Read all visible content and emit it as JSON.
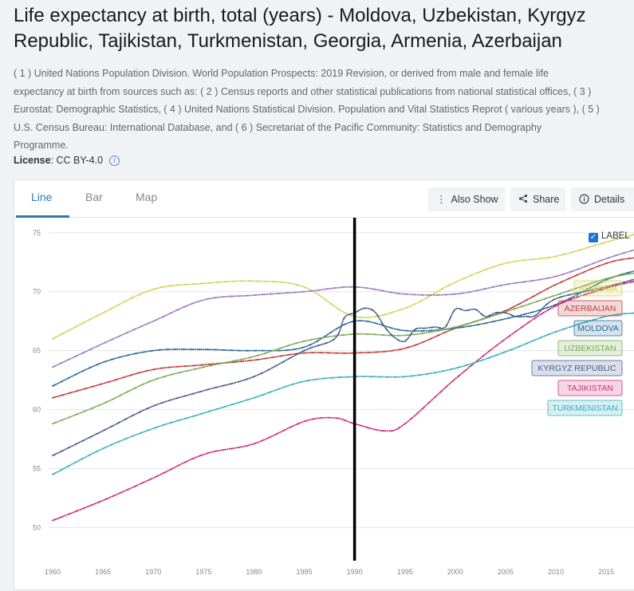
{
  "header": {
    "title_line1": "Life expectancy at birth, total (years) - Moldova, Uzbekistan, Kyrgyz",
    "title_line2": "Republic, Tajikistan, Turkmenistan, Georgia, Armenia, Azerbaijan",
    "source_lines": [
      "( 1 ) United Nations Population Division. World Population Prospects: 2019 Revision, or derived from male and female life",
      "expectancy at birth from sources such as: ( 2 ) Census reports and other statistical publications from national statistical offices, ( 3 )",
      "Eurostat: Demographic Statistics, ( 4 ) United Nations Statistical Division. Population and Vital Statistics Reprot ( various years ), ( 5 )",
      "U.S. Census Bureau: International Database, and ( 6 ) Secretariat of the Pacific Community: Statistics and Demography",
      "Programme."
    ],
    "license_label": "License",
    "license_value": ": CC BY-4.0"
  },
  "tabs": {
    "line": "Line",
    "bar": "Bar",
    "map": "Map"
  },
  "buttons": {
    "also_show": "Also Show",
    "share": "Share",
    "details": "Details"
  },
  "legend": {
    "label_toggle": "LABEL"
  },
  "colors": {
    "armenia": "#d4d45a",
    "georgia": "#9b7dc0",
    "moldova": "#2e6d9a",
    "uzbekistan": "#7aac54",
    "azerbaijan": "#c04040",
    "kyrgyz": "#4a6090",
    "tajikistan": "#d0307a",
    "turkmenistan": "#3cb0c0"
  },
  "chart_data": {
    "type": "line",
    "title": "Life expectancy at birth, total (years)",
    "xlabel": "",
    "ylabel": "",
    "xlim": [
      1960,
      2018
    ],
    "ylim": [
      48,
      76
    ],
    "x_ticks": [
      1960,
      1965,
      1970,
      1975,
      1980,
      1985,
      1990,
      1995,
      2000,
      2005,
      2010,
      2015
    ],
    "y_ticks": [
      50,
      55,
      60,
      65,
      70,
      75
    ],
    "marker_year": 1990,
    "series": [
      {
        "name": "ARMENIA",
        "color_key": "armenia",
        "label_visible": true,
        "x": [
          1960,
          1965,
          1970,
          1975,
          1980,
          1985,
          1990,
          1995,
          2000,
          2005,
          2010,
          2015,
          2018
        ],
        "y": [
          66.0,
          68.2,
          70.2,
          70.7,
          70.9,
          70.4,
          67.9,
          68.6,
          70.8,
          72.4,
          73.0,
          74.2,
          74.9
        ]
      },
      {
        "name": "GEORGIA",
        "color_key": "georgia",
        "label_visible": false,
        "x": [
          1960,
          1965,
          1970,
          1975,
          1980,
          1985,
          1990,
          1995,
          2000,
          2005,
          2010,
          2015,
          2018
        ],
        "y": [
          63.6,
          65.6,
          67.5,
          69.3,
          69.7,
          70.0,
          70.4,
          69.8,
          69.8,
          70.6,
          71.3,
          72.8,
          73.6
        ]
      },
      {
        "name": "AZERBAIJAN",
        "color_key": "azerbaijan",
        "label_visible": true,
        "x": [
          1960,
          1965,
          1970,
          1975,
          1980,
          1985,
          1990,
          1995,
          2000,
          2005,
          2010,
          2015,
          2018
        ],
        "y": [
          61.0,
          62.2,
          63.4,
          63.8,
          64.2,
          64.8,
          64.8,
          65.2,
          66.9,
          68.4,
          70.6,
          72.4,
          72.9
        ]
      },
      {
        "name": "MOLDOVA",
        "color_key": "moldova",
        "label_visible": true,
        "x": [
          1960,
          1965,
          1970,
          1975,
          1980,
          1985,
          1990,
          1995,
          2000,
          2005,
          2010,
          2015,
          2018
        ],
        "y": [
          62.0,
          64.0,
          65.0,
          65.1,
          65.0,
          65.3,
          67.5,
          66.7,
          66.9,
          67.7,
          68.9,
          71.0,
          71.8
        ]
      },
      {
        "name": "UZBEKISTAN",
        "color_key": "uzbekistan",
        "label_visible": true,
        "x": [
          1960,
          1965,
          1970,
          1975,
          1980,
          1985,
          1990,
          1995,
          2000,
          2005,
          2010,
          2015,
          2018
        ],
        "y": [
          58.8,
          60.5,
          62.5,
          63.6,
          64.5,
          65.8,
          66.4,
          66.3,
          67.0,
          68.3,
          69.7,
          71.1,
          71.6
        ]
      },
      {
        "name": "KYRGYZ REPUBLIC",
        "color_key": "kyrgyz",
        "label_visible": true,
        "x": [
          1960,
          1965,
          1970,
          1975,
          1980,
          1985,
          1988,
          1989,
          1990,
          1991,
          1992,
          1993,
          1994,
          1995,
          1996,
          1997,
          1998,
          1999,
          2000,
          2001,
          2002,
          2003,
          2004,
          2005,
          2006,
          2007,
          2008,
          2010,
          2015,
          2018
        ],
        "y": [
          56.1,
          58.2,
          60.3,
          61.6,
          62.8,
          65.0,
          66.0,
          67.8,
          68.2,
          68.6,
          68.3,
          67.0,
          66.1,
          65.8,
          66.8,
          66.9,
          67.0,
          67.0,
          68.5,
          68.4,
          68.5,
          67.9,
          68.2,
          68.2,
          67.9,
          67.9,
          68.0,
          69.4,
          70.4,
          71.1
        ]
      },
      {
        "name": "TAJIKISTAN",
        "color_key": "tajikistan",
        "label_visible": true,
        "x": [
          1960,
          1965,
          1970,
          1975,
          1980,
          1985,
          1988,
          1990,
          1993,
          1995,
          2000,
          2005,
          2010,
          2015,
          2018
        ],
        "y": [
          50.6,
          52.3,
          54.2,
          56.2,
          57.1,
          59.0,
          59.3,
          58.8,
          58.2,
          58.8,
          62.6,
          66.0,
          68.8,
          70.3,
          70.9
        ]
      },
      {
        "name": "TURKMENISTAN",
        "color_key": "turkmenistan",
        "label_visible": true,
        "x": [
          1960,
          1965,
          1970,
          1975,
          1980,
          1985,
          1990,
          1995,
          2000,
          2005,
          2010,
          2015,
          2018
        ],
        "y": [
          54.5,
          56.7,
          58.4,
          59.7,
          61.0,
          62.4,
          62.8,
          62.8,
          63.5,
          64.9,
          66.6,
          67.9,
          68.2
        ]
      }
    ]
  }
}
